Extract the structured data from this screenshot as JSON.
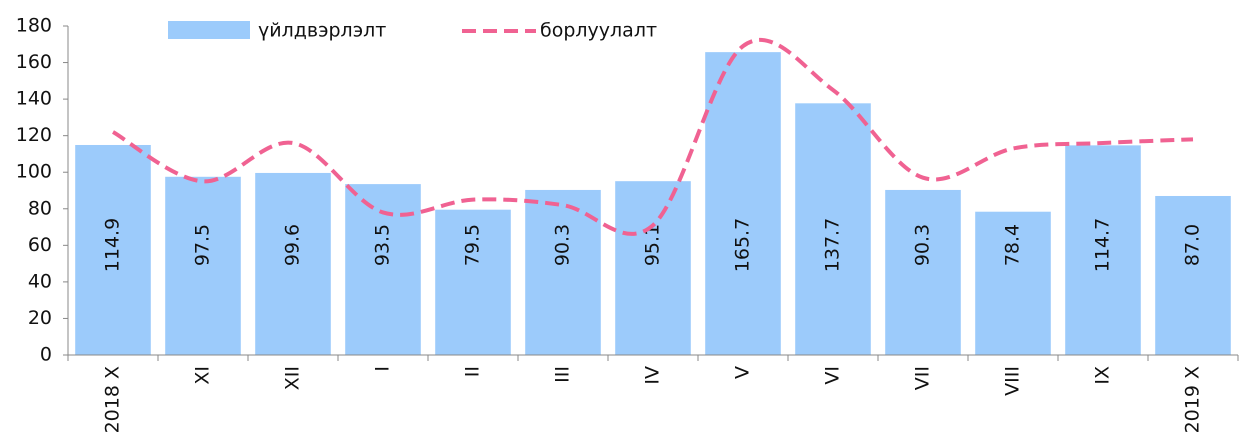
{
  "chart_data": {
    "type": "combo",
    "categories": [
      "2018 X",
      "XI",
      "XII",
      "I",
      "II",
      "III",
      "IV",
      "V",
      "VI",
      "VII",
      "VIII",
      "IX",
      "2019 X"
    ],
    "series": [
      {
        "name": "үйлдвэрлэлт",
        "type": "bar",
        "color": "#9ccbfb",
        "values": [
          114.9,
          97.5,
          99.6,
          93.5,
          79.5,
          90.3,
          95.1,
          165.7,
          137.7,
          90.3,
          78.4,
          114.7,
          87
        ],
        "value_labels": [
          "114.9",
          "97.5",
          "99.6",
          "93.5",
          "79.5",
          "90.3",
          "95.1",
          "165.7",
          "137.7",
          "90.3",
          "78.4",
          "114.7",
          "87.0"
        ]
      },
      {
        "name": "борлуулалт",
        "type": "line",
        "color": "#f06292",
        "values": [
          122,
          95,
          116,
          78,
          85,
          82,
          71,
          169,
          145,
          97,
          113,
          116,
          118
        ]
      }
    ],
    "ylim": [
      0,
      180
    ],
    "yticks": [
      0,
      20,
      40,
      60,
      80,
      100,
      120,
      140,
      160,
      180
    ]
  }
}
